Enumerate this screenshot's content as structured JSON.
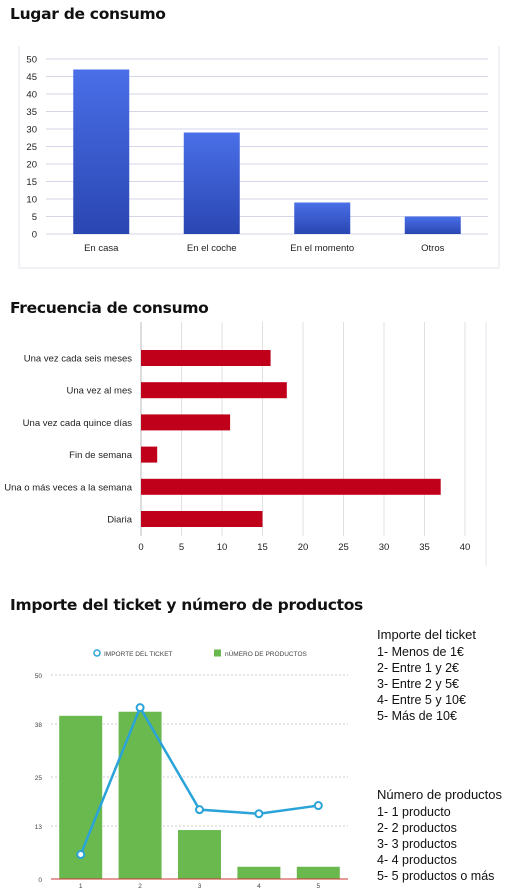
{
  "sections": [
    {
      "title": "Lugar de consumo"
    },
    {
      "title": "Frecuencia de consumo"
    },
    {
      "title": "Importe del ticket y número de productos"
    }
  ],
  "chart_data": [
    {
      "type": "bar",
      "orientation": "vertical",
      "title": "Lugar de consumo",
      "categories": [
        "En casa",
        "En el coche",
        "En el momento",
        "Otros"
      ],
      "values": [
        47,
        29,
        9,
        5
      ],
      "ylim": [
        0,
        50
      ],
      "yticks": [
        0,
        5,
        10,
        15,
        20,
        25,
        30,
        35,
        40,
        45,
        50
      ],
      "grid": true,
      "colors": {
        "bar_top": "#4a6fe8",
        "bar_bottom": "#2a46b2",
        "grid": "#d6d6e8"
      }
    },
    {
      "type": "bar",
      "orientation": "horizontal",
      "title": "Frecuencia de consumo",
      "categories": [
        "Una vez cada seis meses",
        "Una vez al mes",
        "Una vez cada quince días",
        "Fin de semana",
        "Una o más veces a la semana",
        "Diaria"
      ],
      "values": [
        16,
        18,
        11,
        2,
        37,
        15
      ],
      "xlim": [
        0,
        40
      ],
      "xticks": [
        0,
        5,
        10,
        15,
        20,
        25,
        30,
        35,
        40
      ],
      "grid": true,
      "colors": {
        "bar": "#c0001a",
        "grid": "#e0e0e0"
      }
    },
    {
      "type": "bar",
      "title": "Importe del ticket y número de productos",
      "categories": [
        "1",
        "2",
        "3",
        "4",
        "5"
      ],
      "ylim": [
        0,
        50
      ],
      "yticks": [
        "0",
        "13",
        "25",
        "38",
        "50"
      ],
      "legend": {
        "position": "top",
        "entries": [
          "IMPORTE DEL TICKET",
          "nÚMERO DE PRODUCTOS"
        ]
      },
      "series": [
        {
          "name": "nÚMERO DE PRODUCTOS",
          "type": "bar",
          "values": [
            40,
            41,
            12,
            3,
            3
          ],
          "color": "#6ab94f"
        },
        {
          "name": "IMPORTE DEL TICKET",
          "type": "line",
          "values": [
            6,
            42,
            17,
            16,
            18
          ],
          "color": "#2aa3d8"
        }
      ],
      "colors": {
        "axis": "#cc3333",
        "grid": "#cccccc"
      }
    }
  ],
  "legend_importe": {
    "title": "Importe del ticket",
    "items": [
      "1- Menos de 1€",
      "2- Entre 1 y 2€",
      "3- Entre 2 y 5€",
      "4- Entre 5 y 10€",
      "5- Más de 10€"
    ]
  },
  "legend_productos": {
    "title": "Número de productos",
    "items": [
      "1- 1 producto",
      "2- 2 productos",
      "3- 3 productos",
      "4- 4 productos",
      "5- 5 productos o más"
    ]
  }
}
